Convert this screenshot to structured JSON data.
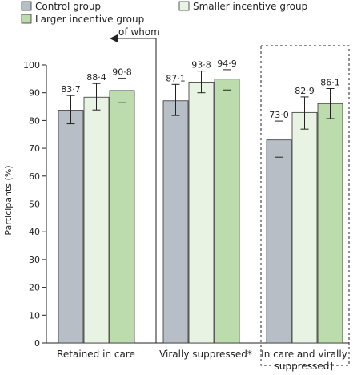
{
  "chart_data": {
    "type": "bar",
    "title": "",
    "xlabel": "",
    "ylabel": "Participants (%)",
    "ylim": [
      0,
      100
    ],
    "yticks": [
      0,
      10,
      20,
      30,
      40,
      50,
      60,
      70,
      80,
      90,
      100
    ],
    "categories": [
      "Retained in care",
      "Virally suppressed*",
      "In care and virally suppressed†"
    ],
    "category_lines": [
      [
        "Retained in care"
      ],
      [
        "Virally suppressed*"
      ],
      [
        "In care and virally",
        "suppressed†"
      ]
    ],
    "series": [
      {
        "name": "Control group",
        "color": "#b8bec5",
        "values": [
          83.7,
          87.1,
          73.0
        ],
        "labels": [
          "83·7",
          "87·1",
          "73·0"
        ],
        "ci_low": [
          78.8,
          81.8,
          66.8
        ],
        "ci_high": [
          89.0,
          93.0,
          79.8
        ]
      },
      {
        "name": "Smaller incentive group",
        "color": "#e9f3e3",
        "values": [
          88.4,
          93.8,
          82.9
        ],
        "labels": [
          "88·4",
          "93·8",
          "82·9"
        ],
        "ci_low": [
          83.8,
          90.0,
          76.9
        ],
        "ci_high": [
          93.3,
          97.8,
          88.5
        ]
      },
      {
        "name": "Larger incentive group",
        "color": "#bddcae",
        "values": [
          90.8,
          94.9,
          86.1
        ],
        "labels": [
          "90·8",
          "94·9",
          "86·1"
        ],
        "ci_low": [
          86.4,
          91.0,
          80.7
        ],
        "ci_high": [
          95.2,
          98.3,
          91.5
        ]
      }
    ],
    "annotation": "of whom",
    "legend_position": "top",
    "grid": false
  }
}
